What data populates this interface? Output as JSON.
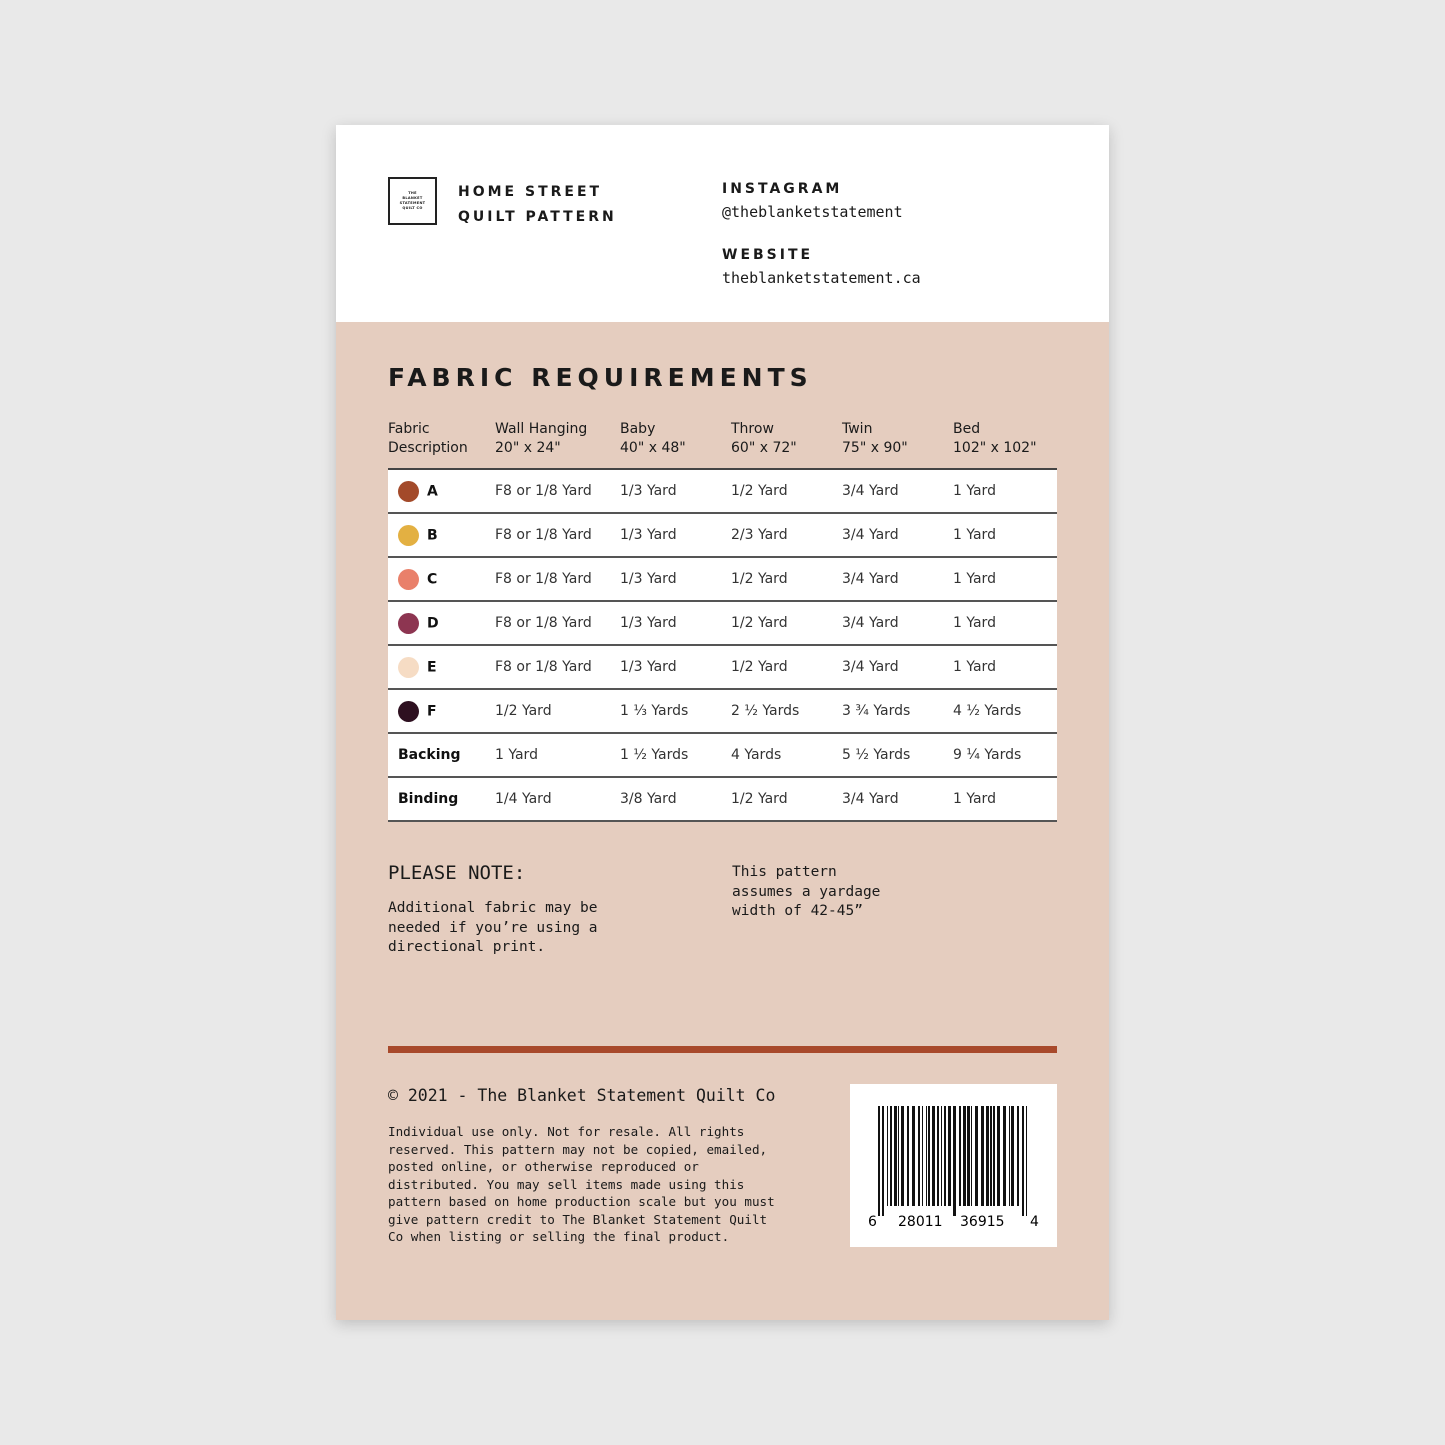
{
  "header": {
    "logo_text": [
      "THE",
      "BLANKET",
      "STATEMENT",
      "QUILT CO"
    ],
    "title_line1": "HOME STREET",
    "title_line2": "QUILT PATTERN",
    "instagram_label": "INSTAGRAM",
    "instagram": "@theblanketstatement",
    "website_label": "WEBSITE",
    "website": "theblanketstatement.ca"
  },
  "section_title": "FABRIC REQUIREMENTS",
  "table": {
    "headers": [
      {
        "l1": "Fabric",
        "l2": "Description"
      },
      {
        "l1": "Wall Hanging",
        "l2": "20\" x 24\""
      },
      {
        "l1": "Baby",
        "l2": "40\" x 48\""
      },
      {
        "l1": "Throw",
        "l2": "60\" x 72\""
      },
      {
        "l1": "Twin",
        "l2": "75\" x 90\""
      },
      {
        "l1": "Bed",
        "l2": "102\" x 102\""
      }
    ],
    "rows": [
      {
        "fabric": "A",
        "color": "#a34a2a",
        "cells": [
          "F8 or 1/8 Yard",
          "1/3 Yard",
          "1/2 Yard",
          "3/4 Yard",
          "1 Yard"
        ]
      },
      {
        "fabric": "B",
        "color": "#e3b042",
        "cells": [
          "F8 or 1/8 Yard",
          "1/3 Yard",
          "2/3 Yard",
          "3/4 Yard",
          "1 Yard"
        ]
      },
      {
        "fabric": "C",
        "color": "#e9806a",
        "cells": [
          "F8 or 1/8 Yard",
          "1/3 Yard",
          "1/2 Yard",
          "3/4 Yard",
          "1 Yard"
        ]
      },
      {
        "fabric": "D",
        "color": "#8d3551",
        "cells": [
          "F8 or 1/8 Yard",
          "1/3 Yard",
          "1/2 Yard",
          "3/4 Yard",
          "1 Yard"
        ]
      },
      {
        "fabric": "E",
        "color": "#f6dcc4",
        "cells": [
          "F8 or 1/8 Yard",
          "1/3 Yard",
          "1/2 Yard",
          "3/4 Yard",
          "1 Yard"
        ]
      },
      {
        "fabric": "F",
        "color": "#2e1020",
        "cells": [
          "1/2 Yard",
          "1 ⅓ Yards",
          "2 ½ Yards",
          "3 ¾ Yards",
          "4 ½ Yards"
        ]
      },
      {
        "fabric": "Backing",
        "cells": [
          "1 Yard",
          "1 ½ Yards",
          "4 Yards",
          "5 ½ Yards",
          "9 ¼ Yards"
        ]
      },
      {
        "fabric": "Binding",
        "cells": [
          "1/4 Yard",
          "3/8 Yard",
          "1/2 Yard",
          "3/4 Yard",
          "1 Yard"
        ]
      }
    ]
  },
  "note": {
    "title": "PLEASE NOTE:",
    "left": "Additional fabric may be\nneeded if you’re using a\ndirectional print.",
    "right": "This pattern\nassumes a yardage\nwidth of 42-45”"
  },
  "footer": {
    "copyright": "© 2021 - The Blanket Statement Quilt Co",
    "legal": "Individual use only. Not for resale. All rights\nreserved. This pattern may not be copied, emailed,\nposted online, or otherwise reproduced or\ndistributed. You may sell items made using this\npattern based on home production scale but you must\ngive pattern credit to The Blanket Statement Quilt\nCo when listing or selling the final product.",
    "barcode": [
      "6",
      "28011",
      "36915",
      "4"
    ]
  }
}
